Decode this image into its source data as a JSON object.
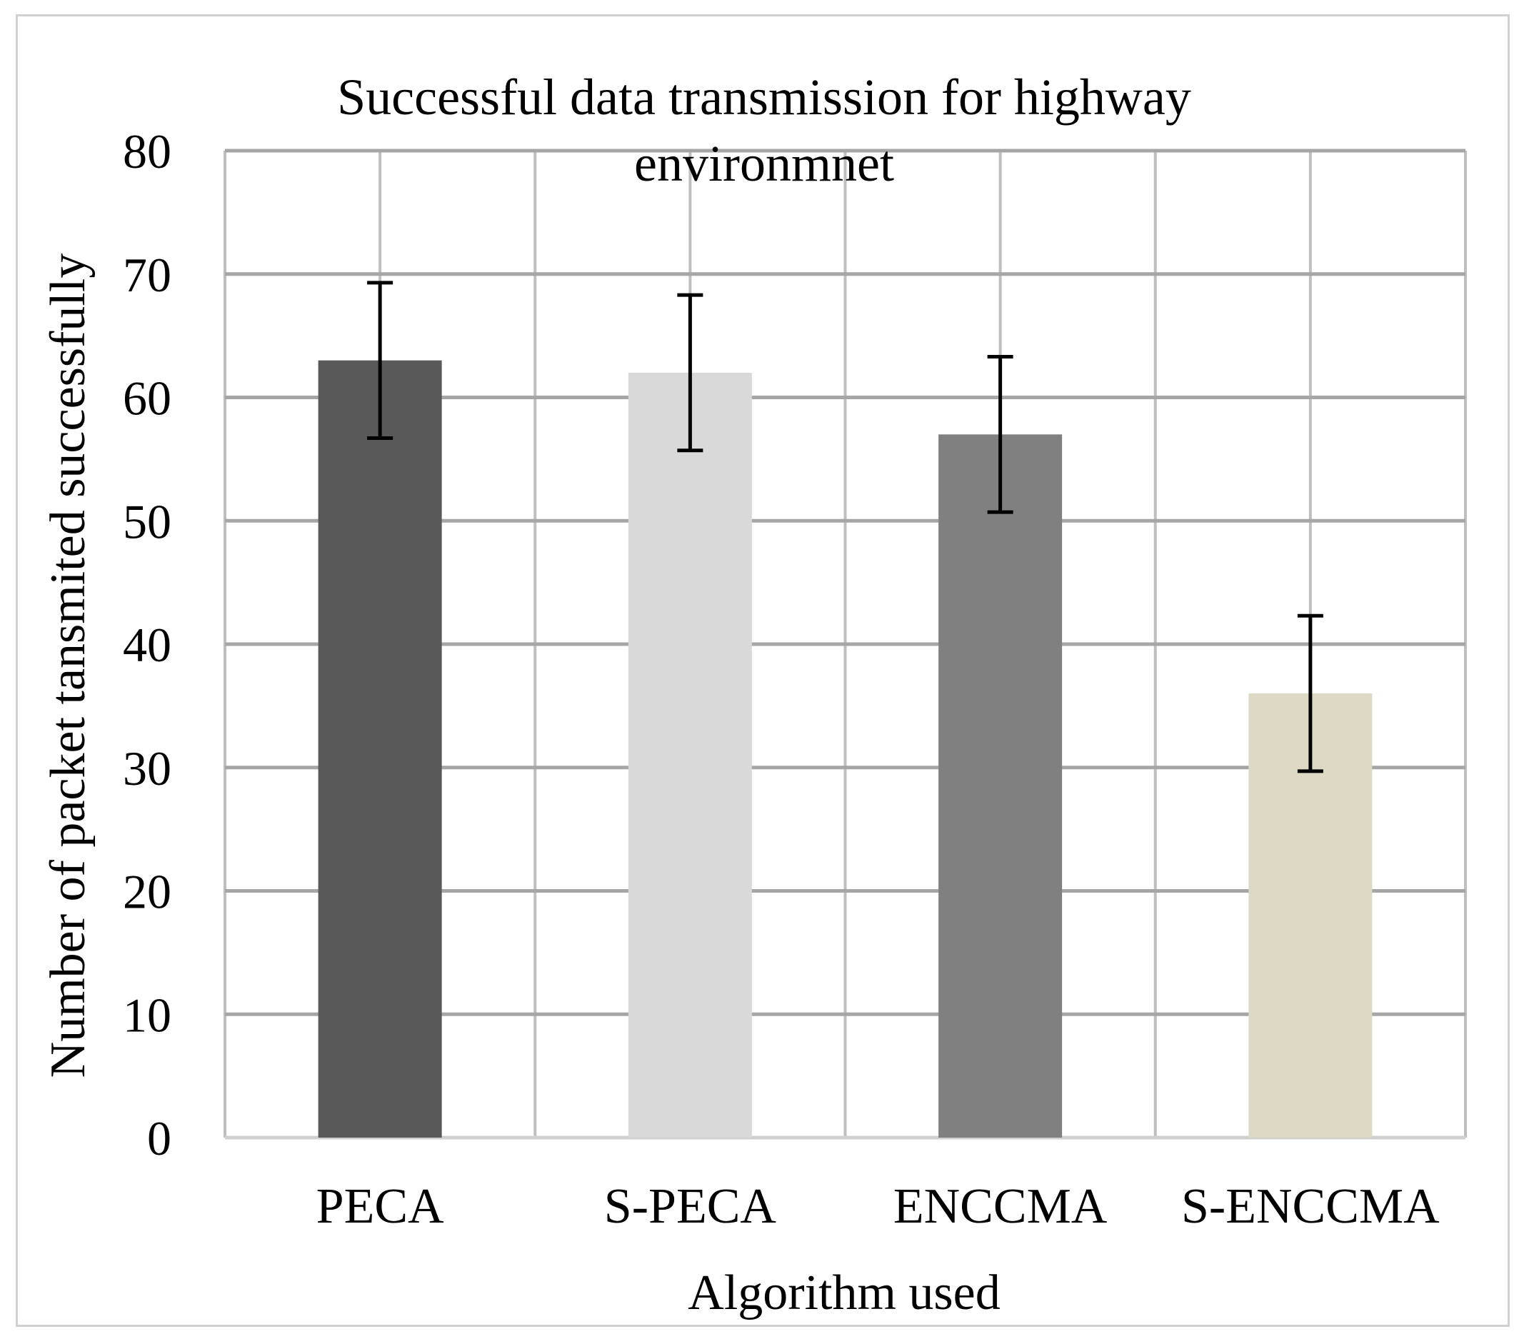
{
  "chart_data": {
    "type": "bar",
    "title_lines": [
      "Successful data transmission for highway",
      "environmnet"
    ],
    "xlabel": "Algorithm used",
    "ylabel": "Number of packet tansmited successfully",
    "categories": [
      "PECA",
      "S-PECA",
      "ENCCMA",
      "S-ENCCMA"
    ],
    "values": [
      63,
      62,
      57,
      36
    ],
    "error": [
      6.3,
      6.3,
      6.3,
      6.3
    ],
    "bar_colors": [
      "#595959",
      "#d9d9d9",
      "#808080",
      "#ddd9c4"
    ],
    "ylim": [
      0,
      80
    ],
    "yticks": [
      "0",
      "10",
      "20",
      "30",
      "40",
      "50",
      "60",
      "70",
      "80"
    ],
    "grid": true,
    "legend": false
  }
}
